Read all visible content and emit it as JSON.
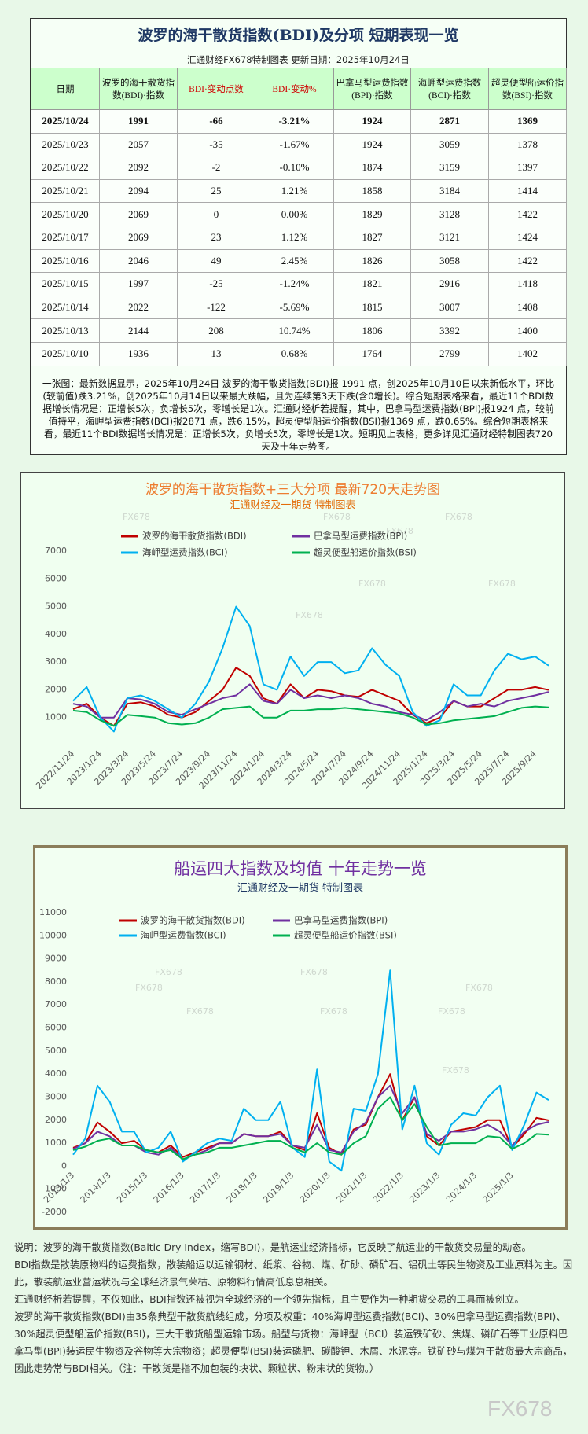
{
  "table": {
    "title": "波罗的海干散货指数(BDI)及分项 短期表现一览",
    "subtitle": "汇通财经FX678特制图表    更新日期：2025年10月24日",
    "header": [
      "日期",
      "波罗的海干散货指数(BDI)·指数",
      "BDI·变动点数",
      "BDI·变动%",
      "巴拿马型运费指数(BPI)·指数",
      "海岬型运费指数(BCI)·指数",
      "超灵便型船运价指数(BSI)·指数"
    ],
    "rows": [
      [
        "2025/10/24",
        "1991",
        "-66",
        "-3.21%",
        "1924",
        "2871",
        "1369"
      ],
      [
        "2025/10/23",
        "2057",
        "-35",
        "-1.67%",
        "1924",
        "3059",
        "1378"
      ],
      [
        "2025/10/22",
        "2092",
        "-2",
        "-0.10%",
        "1874",
        "3159",
        "1397"
      ],
      [
        "2025/10/21",
        "2094",
        "25",
        "1.21%",
        "1858",
        "3184",
        "1414"
      ],
      [
        "2025/10/20",
        "2069",
        "0",
        "0.00%",
        "1829",
        "3128",
        "1422"
      ],
      [
        "2025/10/17",
        "2069",
        "23",
        "1.12%",
        "1827",
        "3121",
        "1424"
      ],
      [
        "2025/10/16",
        "2046",
        "49",
        "2.45%",
        "1826",
        "3058",
        "1422"
      ],
      [
        "2025/10/15",
        "1997",
        "-25",
        "-1.24%",
        "1821",
        "2916",
        "1418"
      ],
      [
        "2025/10/14",
        "2022",
        "-122",
        "-5.69%",
        "1815",
        "3007",
        "1408"
      ],
      [
        "2025/10/13",
        "2144",
        "208",
        "10.74%",
        "1806",
        "3392",
        "1400"
      ],
      [
        "2025/10/10",
        "1936",
        "13",
        "0.68%",
        "1764",
        "2799",
        "1402"
      ]
    ],
    "note": "一张图：最新数据显示，2025年10月24日 波罗的海干散货指数(BDI)报 1991 点，创2025年10月10日以来新低水平，环比(较前值)跌3.21%，创2025年10月14日以来最大跌幅，且为连续第3天下跌(含0増长)。综合短期表格来看，最近11个BDI数据增长情况是：正增长5次，负增长5次，零增长是1次。汇通财经析若提醒，其中，巴拿马型运费指数(BPI)报1924 点，较前值持平，海岬型运费指数(BCI)报2871 点，跌6.15%，超灵便型船运价指数(BSI)报1369 点，跌0.65%。综合短期表格来看，最近11个BDI数据增长情况是：正增长5次，负增长5次，零增长是1次。短期见上表格，更多详见汇通财经特制图表720天及十年走势图。"
  },
  "chart_data": [
    {
      "type": "line",
      "title": "波罗的海干散货指数+三大分项  最新720天走势图",
      "subtitle": "汇通财经及一期货  特制图表",
      "title_color": "#ed7d31",
      "subtitle_color": "#e36c09",
      "legend": "top",
      "categories": [
        "2022/11/24",
        null,
        "2023/1/24",
        null,
        "2023/3/24",
        null,
        "2023/5/24",
        null,
        "2023/7/24",
        null,
        "2023/9/24",
        null,
        "2023/11/24",
        null,
        "2024/1/24",
        null,
        "2024/3/24",
        null,
        "2024/5/24",
        null,
        "2024/7/24",
        null,
        "2024/9/24",
        null,
        "2024/11/24",
        null,
        "2025/1/24",
        null,
        "2025/3/24",
        null,
        "2025/5/24",
        null,
        "2025/7/24",
        null,
        "2025/9/24",
        null
      ],
      "ylim": [
        0,
        7000
      ],
      "yticks": [
        1000,
        2000,
        3000,
        4000,
        5000,
        6000,
        7000
      ],
      "grid": false,
      "series": [
        {
          "name": "波罗的海干散货指数(BDI)",
          "color": "#c00000",
          "values": [
            1300,
            1500,
            1000,
            700,
            1500,
            1550,
            1400,
            1100,
            1000,
            1200,
            1600,
            2000,
            2800,
            2500,
            1700,
            1500,
            2200,
            1700,
            2000,
            1950,
            1800,
            1750,
            2000,
            1800,
            1600,
            1100,
            800,
            1000,
            1600,
            1400,
            1400,
            1700,
            2000,
            2000,
            2100,
            1991
          ]
        },
        {
          "name": "巴拿马型运费指数(BPI)",
          "color": "#7030a0",
          "values": [
            1500,
            1400,
            1000,
            1000,
            1700,
            1650,
            1500,
            1200,
            1100,
            1300,
            1500,
            1700,
            1800,
            2200,
            1600,
            1500,
            2000,
            1700,
            1800,
            1700,
            1800,
            1700,
            1500,
            1400,
            1200,
            1100,
            900,
            1200,
            1600,
            1400,
            1500,
            1400,
            1600,
            1700,
            1800,
            1924
          ]
        },
        {
          "name": "海岬型运费指数(BCI)",
          "color": "#00b0f0",
          "values": [
            1600,
            2100,
            1000,
            500,
            1700,
            1800,
            1600,
            1300,
            1000,
            1500,
            2300,
            3500,
            5000,
            4300,
            2200,
            2000,
            3200,
            2500,
            3000,
            3000,
            2600,
            2700,
            3500,
            2900,
            2500,
            1200,
            700,
            900,
            2200,
            1800,
            1800,
            2700,
            3300,
            3100,
            3200,
            2871
          ]
        },
        {
          "name": "超灵便型船运价指数(BSI)",
          "color": "#00b050",
          "values": [
            1250,
            1200,
            900,
            700,
            1100,
            1050,
            1000,
            800,
            750,
            800,
            1000,
            1300,
            1350,
            1400,
            1000,
            1000,
            1250,
            1250,
            1300,
            1300,
            1350,
            1300,
            1250,
            1200,
            1150,
            1000,
            750,
            800,
            900,
            950,
            1000,
            1050,
            1200,
            1350,
            1400,
            1369
          ]
        }
      ]
    },
    {
      "type": "line",
      "title": "船运四大指数及均值 十年走势一览",
      "subtitle": "汇通财经及一期货 特制图表",
      "title_color": "#7030a0",
      "subtitle_color": "#1f3864",
      "legend": "top",
      "categories": [
        "2013/1/3",
        null,
        null,
        "2014/1/3",
        null,
        null,
        "2015/1/3",
        null,
        null,
        "2016/1/3",
        null,
        null,
        "2017/1/3",
        null,
        null,
        "2018/1/3",
        null,
        null,
        "2019/1/3",
        null,
        null,
        "2020/1/3",
        null,
        null,
        "2021/1/3",
        null,
        null,
        "2022/1/3",
        null,
        null,
        "2023/1/3",
        null,
        null,
        "2024/1/3",
        null,
        null,
        "2025/1/3",
        null,
        null,
        null
      ],
      "ylim": [
        -2000,
        11000
      ],
      "yticks": [
        -2000,
        -1000,
        0,
        1000,
        2000,
        3000,
        4000,
        5000,
        6000,
        7000,
        8000,
        9000,
        10000,
        11000
      ],
      "grid": false,
      "series": [
        {
          "name": "波罗的海干散货指数(BDI)",
          "color": "#c00000",
          "values": [
            800,
            1000,
            1900,
            1500,
            1000,
            1100,
            700,
            600,
            900,
            400,
            600,
            800,
            1000,
            1000,
            1400,
            1300,
            1300,
            1500,
            900,
            700,
            2300,
            800,
            500,
            1600,
            1800,
            3000,
            4000,
            2000,
            3000,
            1300,
            900,
            1500,
            1600,
            1700,
            2000,
            2000,
            800,
            1400,
            2100,
            1991
          ]
        },
        {
          "name": "巴拿马型运费指数(BPI)",
          "color": "#7030a0",
          "values": [
            750,
            1000,
            1500,
            1300,
            900,
            900,
            600,
            500,
            800,
            300,
            500,
            700,
            1000,
            1000,
            1400,
            1300,
            1300,
            1400,
            900,
            800,
            1800,
            700,
            600,
            1500,
            1900,
            3000,
            3500,
            2300,
            3000,
            1400,
            1100,
            1500,
            1500,
            1600,
            1800,
            1500,
            900,
            1500,
            1800,
            1924
          ]
        },
        {
          "name": "海岬型运费指数(BCI)",
          "color": "#00b0f0",
          "values": [
            500,
            1200,
            3500,
            2800,
            1500,
            1500,
            600,
            800,
            1500,
            200,
            600,
            1000,
            1200,
            1100,
            2500,
            2000,
            2000,
            2800,
            800,
            400,
            4200,
            200,
            -200,
            2500,
            2400,
            4000,
            8500,
            1600,
            3500,
            1000,
            500,
            1800,
            2300,
            2200,
            3000,
            3500,
            700,
            1800,
            3200,
            2871
          ]
        },
        {
          "name": "超灵便型船运价指数(BSI)",
          "color": "#00b050",
          "values": [
            700,
            850,
            1100,
            1200,
            900,
            900,
            700,
            600,
            700,
            300,
            500,
            600,
            800,
            800,
            900,
            1000,
            1100,
            1100,
            800,
            600,
            1000,
            600,
            500,
            1000,
            1300,
            2500,
            3000,
            2000,
            2700,
            1700,
            900,
            1000,
            1000,
            1000,
            1300,
            1250,
            750,
            1000,
            1400,
            1369
          ]
        }
      ]
    }
  ],
  "description": [
    "说明：波罗的海干散货指数(Baltic Dry Index，缩写BDI)，是航运业经济指标，它反映了航运业的干散货交易量的动态。",
    "BDI指数是散装原物料的运费指数，散装船运以运输钢材、纸浆、谷物、煤、矿砂、磷矿石、铝矾土等民生物资及工业原料为主。因此，散装航运业营运状况与全球经济景气荣枯、原物料行情高低息息相关。",
    "汇通财经析若提醒，不仅如此，BDI指数还被视为全球经济的一个领先指标，且主要作为一种期货交易的工具而被创立。",
    "波罗的海干散货指数(BDI)由35条典型干散货航线组成，分项及权重：40%海岬型运费指数(BCI)、30%巴拿马型运费指数(BPI)、30%超灵便型船运价指数(BSI)，三大干散货船型运输市场。船型与货物：海岬型（BCI）装运铁矿砂、焦煤、磷矿石等工业原料巴拿马型(BPI)装运民生物资及谷物等大宗物资；超灵便型(BSI)装运磷肥、碳酸钾、木屑、水泥等。铁矿砂与煤为干散货最大宗商品，因此走势常与BDI相关。（注：干散货是指不加包装的块状、颗粒状、粉末状的货物。）"
  ],
  "watermark": "FX678"
}
